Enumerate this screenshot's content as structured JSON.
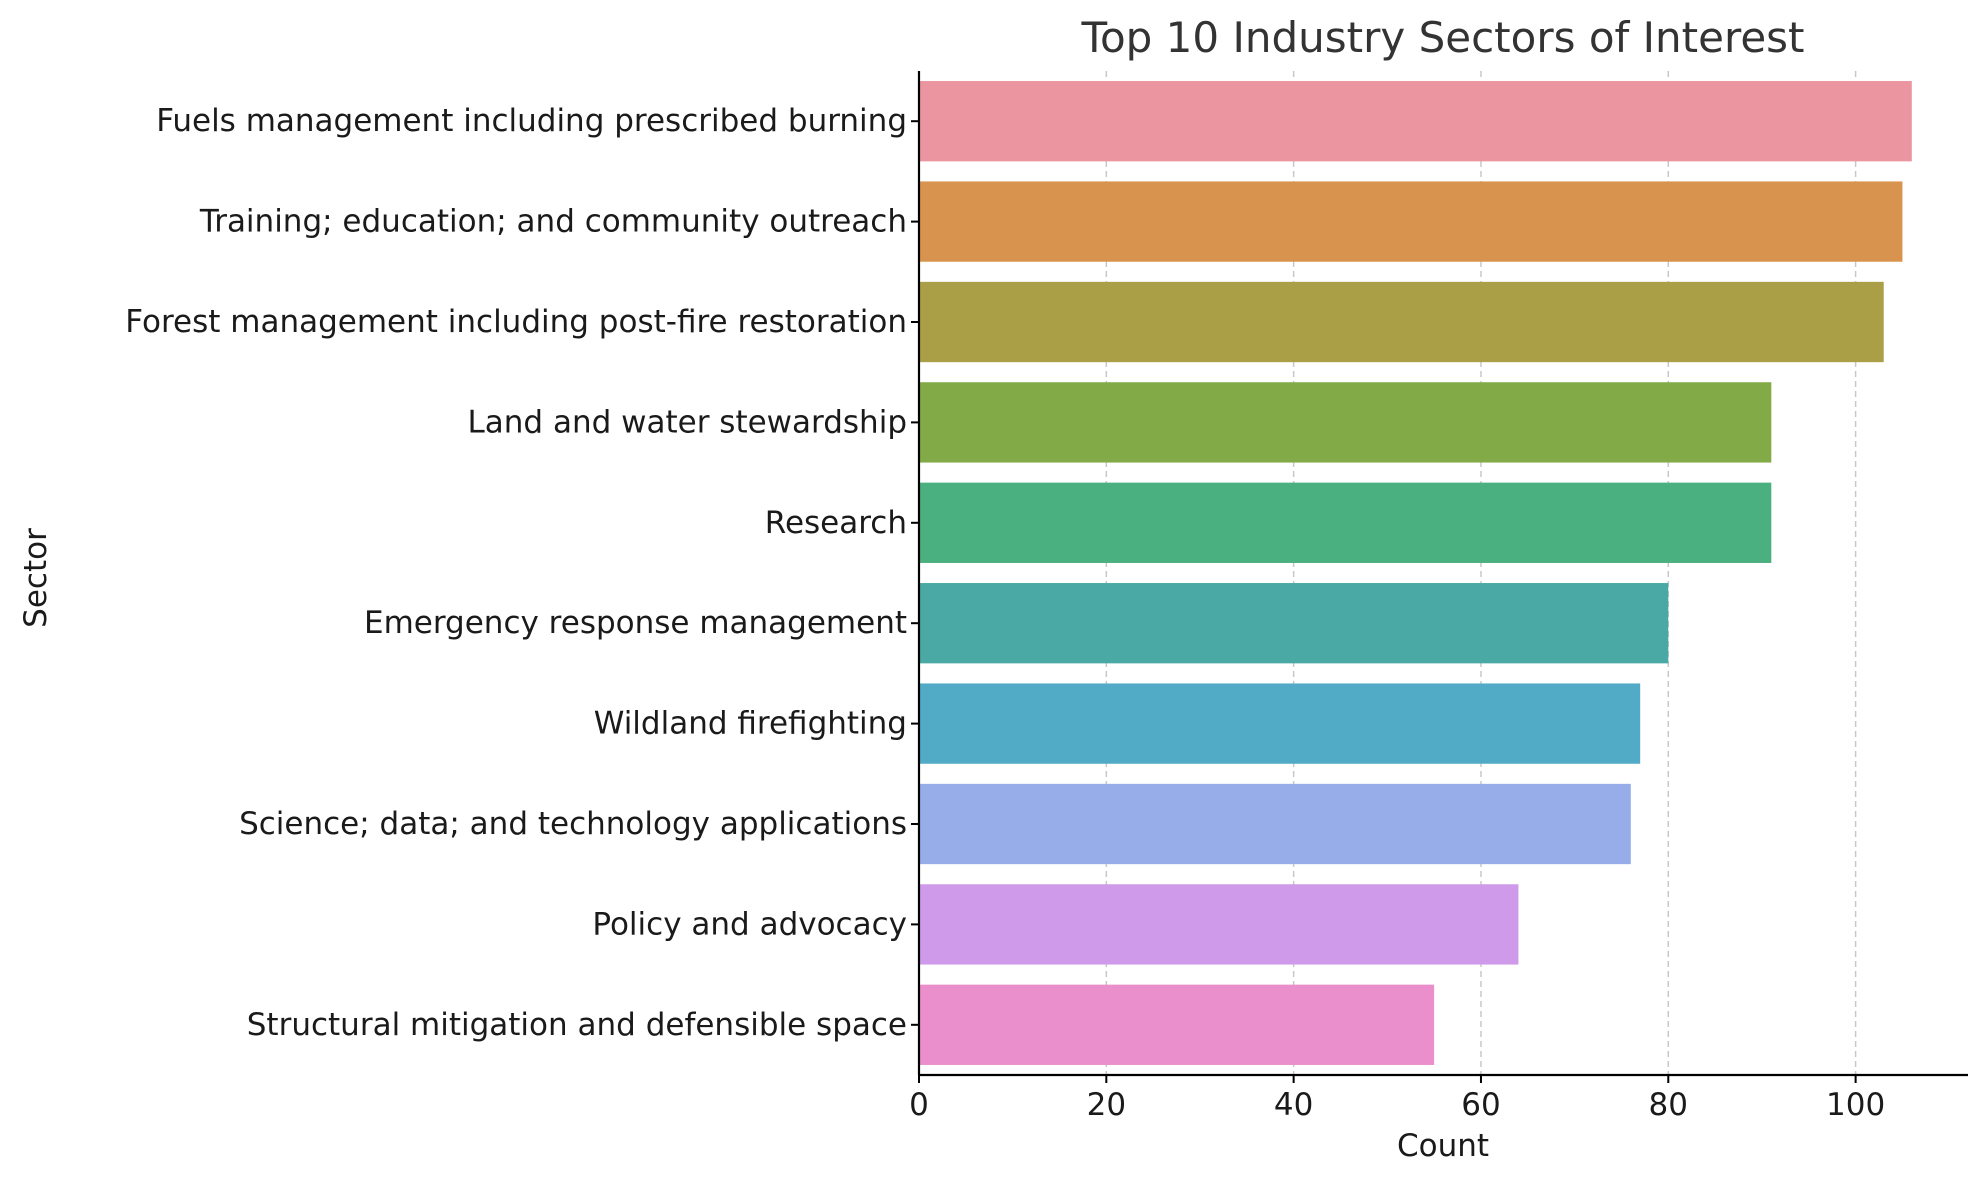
{
  "chart_data": {
    "type": "bar",
    "orientation": "horizontal",
    "title": "Top 10 Industry Sectors of Interest",
    "xlabel": "Count",
    "ylabel": "Sector",
    "xlim": [
      0,
      112
    ],
    "xticks": [
      0,
      20,
      40,
      60,
      80,
      100
    ],
    "grid": "x-dashed",
    "categories": [
      "Fuels management including prescribed burning",
      "Training; education; and community outreach",
      "Forest management including post-fire restoration",
      "Land and water stewardship",
      "Research",
      "Emergency response management",
      "Wildland firefighting",
      "Science; data; and technology applications",
      "Policy and advocacy",
      "Structural mitigation and defensible space"
    ],
    "values": [
      106,
      105,
      103,
      91,
      91,
      80,
      77,
      76,
      64,
      55
    ],
    "colors": [
      "#ea959f",
      "#d8944f",
      "#aa9f47",
      "#82aa46",
      "#4bb07f",
      "#4aa9a4",
      "#51abc6",
      "#96adea",
      "#cf9ae9",
      "#ea8ecc"
    ]
  }
}
